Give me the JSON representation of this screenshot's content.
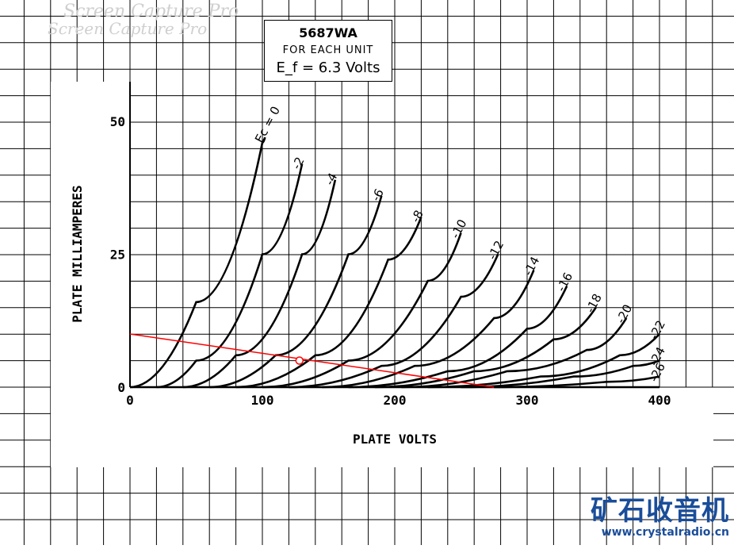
{
  "watermark": {
    "line1": "Screen Capture Pro",
    "line2": "Screen Capture Pro"
  },
  "title_box": {
    "tube": "5687WA",
    "note": "FOR EACH UNIT",
    "heater": "E_f = 6.3 Volts"
  },
  "logo": {
    "name": "矿石收音机",
    "url": "www.crystalradio.cn"
  },
  "colors": {
    "curves": "#000000",
    "load_line": "#ff0000",
    "grid": "#000000",
    "logo": "#1a4d9a"
  },
  "chart_data": {
    "type": "line",
    "xlabel": "PLATE VOLTS",
    "ylabel": "PLATE MILLIAMPERES",
    "xlim": [
      0,
      400
    ],
    "ylim": [
      0,
      50
    ],
    "x_ticks": [
      "0",
      "100",
      "200",
      "300",
      "400"
    ],
    "y_ticks": [
      "0",
      "25",
      "50"
    ],
    "grid": true,
    "series": [
      {
        "name": "Ec = 0",
        "x": [
          0,
          50,
          100,
          102
        ],
        "y": [
          0,
          16,
          46,
          47
        ]
      },
      {
        "name": "-2",
        "x": [
          20,
          50,
          100,
          130
        ],
        "y": [
          0,
          5,
          25,
          42
        ]
      },
      {
        "name": "-4",
        "x": [
          40,
          80,
          130,
          155
        ],
        "y": [
          0,
          6,
          25,
          39
        ]
      },
      {
        "name": "-6",
        "x": [
          60,
          110,
          165,
          190
        ],
        "y": [
          0,
          6,
          25,
          36
        ]
      },
      {
        "name": "-8",
        "x": [
          80,
          140,
          195,
          220
        ],
        "y": [
          0,
          6,
          24,
          32
        ]
      },
      {
        "name": "-10",
        "x": [
          100,
          165,
          225,
          250
        ],
        "y": [
          0,
          5,
          20,
          29
        ]
      },
      {
        "name": "-12",
        "x": [
          120,
          190,
          250,
          278
        ],
        "y": [
          0,
          4,
          17,
          25
        ]
      },
      {
        "name": "-14",
        "x": [
          145,
          215,
          275,
          305
        ],
        "y": [
          0,
          4,
          13,
          22
        ]
      },
      {
        "name": "-16",
        "x": [
          165,
          240,
          300,
          330
        ],
        "y": [
          0,
          3,
          11,
          19
        ]
      },
      {
        "name": "-18",
        "x": [
          185,
          260,
          320,
          352
        ],
        "y": [
          0,
          3,
          9,
          15
        ]
      },
      {
        "name": "-20",
        "x": [
          205,
          285,
          345,
          375
        ],
        "y": [
          0,
          3,
          7,
          13
        ]
      },
      {
        "name": "-22",
        "x": [
          225,
          310,
          370,
          400
        ],
        "y": [
          0,
          2,
          6,
          10
        ]
      },
      {
        "name": "-24",
        "x": [
          250,
          335,
          380,
          400
        ],
        "y": [
          0,
          2,
          4,
          5
        ]
      },
      {
        "name": "-26",
        "x": [
          275,
          360,
          400
        ],
        "y": [
          0,
          1,
          2
        ]
      }
    ],
    "load_line": {
      "x": [
        0,
        275
      ],
      "y": [
        10,
        0
      ]
    },
    "operating_point": {
      "x": 128,
      "y": 5
    }
  }
}
